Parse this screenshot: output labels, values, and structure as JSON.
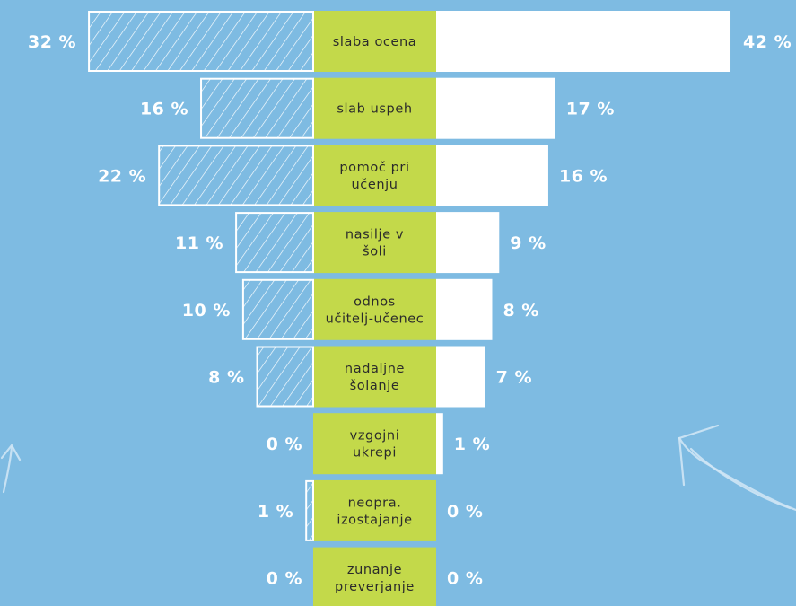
{
  "colors": {
    "background": "#7ebbe2",
    "category_box": "#c3d94a",
    "right_bar": "#ffffff",
    "left_bar_outline": "#ffffff",
    "text": "#ffffff",
    "category_text": "#2b2b2b"
  },
  "chart_data": {
    "type": "bar",
    "orientation": "horizontal-diverging",
    "unit": "%",
    "categories": [
      [
        "slaba ocena"
      ],
      [
        "slab uspeh"
      ],
      [
        "pomoč pri",
        "učenju"
      ],
      [
        "nasilje v",
        "šoli"
      ],
      [
        "odnos",
        "učitelj-učenec"
      ],
      [
        "nadaljne",
        "šolanje"
      ],
      [
        "vzgojni",
        "ukrepi"
      ],
      [
        "neopra.",
        "izostajanje"
      ],
      [
        "zunanje",
        "preverjanje"
      ]
    ],
    "series": [
      {
        "style": "hatched-outline",
        "side": "left",
        "values": [
          32,
          16,
          22,
          11,
          10,
          8,
          0,
          1,
          0
        ],
        "labels": [
          "32 %",
          "16 %",
          "22 %",
          "11 %",
          "10 %",
          "8 %",
          "0 %",
          "1 %",
          "0 %"
        ]
      },
      {
        "style": "solid-white",
        "side": "right",
        "values": [
          42,
          17,
          16,
          9,
          8,
          7,
          1,
          0,
          0
        ],
        "labels": [
          "42 %",
          "17 %",
          "16 %",
          "9 %",
          "8 %",
          "7 %",
          "1 %",
          "0 %",
          "0 %"
        ]
      }
    ],
    "xlim": [
      0,
      42
    ],
    "grid": false,
    "legend": "none",
    "title": "",
    "xlabel": "",
    "ylabel": ""
  },
  "decorations": [
    "arrow-doodle-left",
    "arrow-doodle-right"
  ]
}
